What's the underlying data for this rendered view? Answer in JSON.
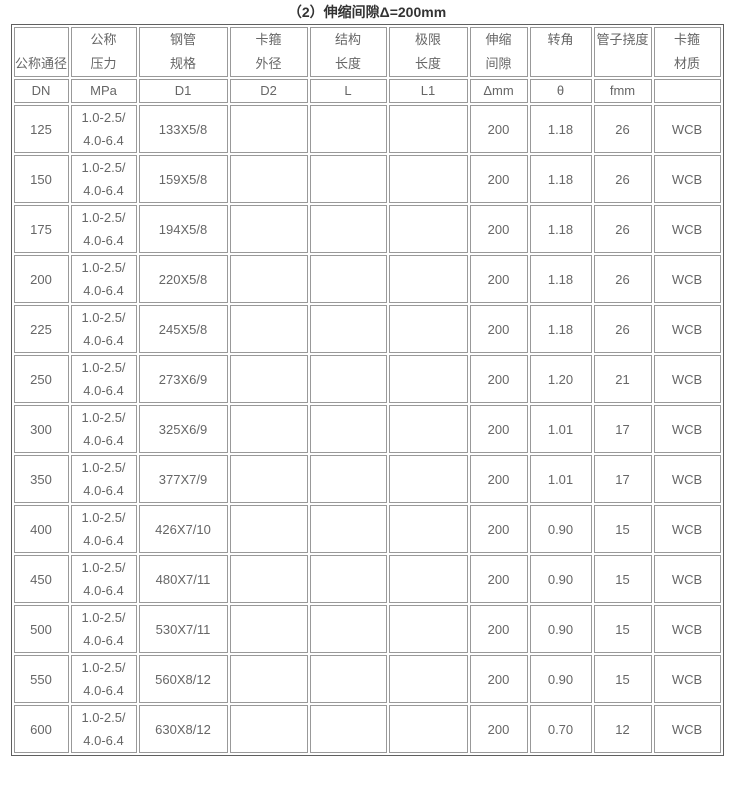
{
  "title": "（2）伸缩间隙Δ=200mm",
  "colors": {
    "title_text": "#333333",
    "cell_text": "#666666",
    "cell_border": "#999999",
    "outer_border": "#5f5f5f",
    "background": "#ffffff"
  },
  "table": {
    "header": {
      "groups": [
        {
          "lines": [
            "",
            "公称通径"
          ],
          "unit": "DN"
        },
        {
          "lines": [
            "公称",
            "压力"
          ],
          "unit": "MPa"
        },
        {
          "lines": [
            "钢管",
            "规格"
          ],
          "unit": "D1"
        },
        {
          "lines": [
            "卡箍",
            "外径"
          ],
          "unit": "D2"
        },
        {
          "lines": [
            "结构",
            "长度"
          ],
          "unit": "L"
        },
        {
          "lines": [
            "极限",
            "长度"
          ],
          "unit": "L1"
        },
        {
          "lines": [
            "伸缩",
            "间隙"
          ],
          "unit": "Δmm"
        },
        {
          "lines": [
            "转角",
            ""
          ],
          "unit": "θ"
        },
        {
          "lines": [
            "管子挠度",
            ""
          ],
          "unit": "fmm"
        },
        {
          "lines": [
            "卡箍",
            "材质"
          ],
          "unit": ""
        }
      ]
    },
    "rows": [
      {
        "dn": "125",
        "pressure": [
          "1.0-2.5/",
          "4.0-6.4"
        ],
        "spec": "133X5/8",
        "d2": "",
        "l": "",
        "l1": "",
        "gap": "200",
        "angle": "1.18",
        "deflection": "26",
        "material": "WCB"
      },
      {
        "dn": "150",
        "pressure": [
          "1.0-2.5/",
          "4.0-6.4"
        ],
        "spec": "159X5/8",
        "d2": "",
        "l": "",
        "l1": "",
        "gap": "200",
        "angle": "1.18",
        "deflection": "26",
        "material": "WCB"
      },
      {
        "dn": "175",
        "pressure": [
          "1.0-2.5/",
          "4.0-6.4"
        ],
        "spec": "194X5/8",
        "d2": "",
        "l": "",
        "l1": "",
        "gap": "200",
        "angle": "1.18",
        "deflection": "26",
        "material": "WCB"
      },
      {
        "dn": "200",
        "pressure": [
          "1.0-2.5/",
          "4.0-6.4"
        ],
        "spec": "220X5/8",
        "d2": "",
        "l": "",
        "l1": "",
        "gap": "200",
        "angle": "1.18",
        "deflection": "26",
        "material": "WCB"
      },
      {
        "dn": "225",
        "pressure": [
          "1.0-2.5/",
          "4.0-6.4"
        ],
        "spec": "245X5/8",
        "d2": "",
        "l": "",
        "l1": "",
        "gap": "200",
        "angle": "1.18",
        "deflection": "26",
        "material": "WCB"
      },
      {
        "dn": "250",
        "pressure": [
          "1.0-2.5/",
          "4.0-6.4"
        ],
        "spec": "273X6/9",
        "d2": "",
        "l": "",
        "l1": "",
        "gap": "200",
        "angle": "1.20",
        "deflection": "21",
        "material": "WCB"
      },
      {
        "dn": "300",
        "pressure": [
          "1.0-2.5/",
          "4.0-6.4"
        ],
        "spec": "325X6/9",
        "d2": "",
        "l": "",
        "l1": "",
        "gap": "200",
        "angle": "1.01",
        "deflection": "17",
        "material": "WCB"
      },
      {
        "dn": "350",
        "pressure": [
          "1.0-2.5/",
          "4.0-6.4"
        ],
        "spec": "377X7/9",
        "d2": "",
        "l": "",
        "l1": "",
        "gap": "200",
        "angle": "1.01",
        "deflection": "17",
        "material": "WCB"
      },
      {
        "dn": "400",
        "pressure": [
          "1.0-2.5/",
          "4.0-6.4"
        ],
        "spec": "426X7/10",
        "d2": "",
        "l": "",
        "l1": "",
        "gap": "200",
        "angle": "0.90",
        "deflection": "15",
        "material": "WCB"
      },
      {
        "dn": "450",
        "pressure": [
          "1.0-2.5/",
          "4.0-6.4"
        ],
        "spec": "480X7/11",
        "d2": "",
        "l": "",
        "l1": "",
        "gap": "200",
        "angle": "0.90",
        "deflection": "15",
        "material": "WCB"
      },
      {
        "dn": "500",
        "pressure": [
          "1.0-2.5/",
          "4.0-6.4"
        ],
        "spec": "530X7/11",
        "d2": "",
        "l": "",
        "l1": "",
        "gap": "200",
        "angle": "0.90",
        "deflection": "15",
        "material": "WCB"
      },
      {
        "dn": "550",
        "pressure": [
          "1.0-2.5/",
          "4.0-6.4"
        ],
        "spec": "560X8/12",
        "d2": "",
        "l": "",
        "l1": "",
        "gap": "200",
        "angle": "0.90",
        "deflection": "15",
        "material": "WCB"
      },
      {
        "dn": "600",
        "pressure": [
          "1.0-2.5/",
          "4.0-6.4"
        ],
        "spec": "630X8/12",
        "d2": "",
        "l": "",
        "l1": "",
        "gap": "200",
        "angle": "0.70",
        "deflection": "12",
        "material": "WCB"
      }
    ]
  }
}
